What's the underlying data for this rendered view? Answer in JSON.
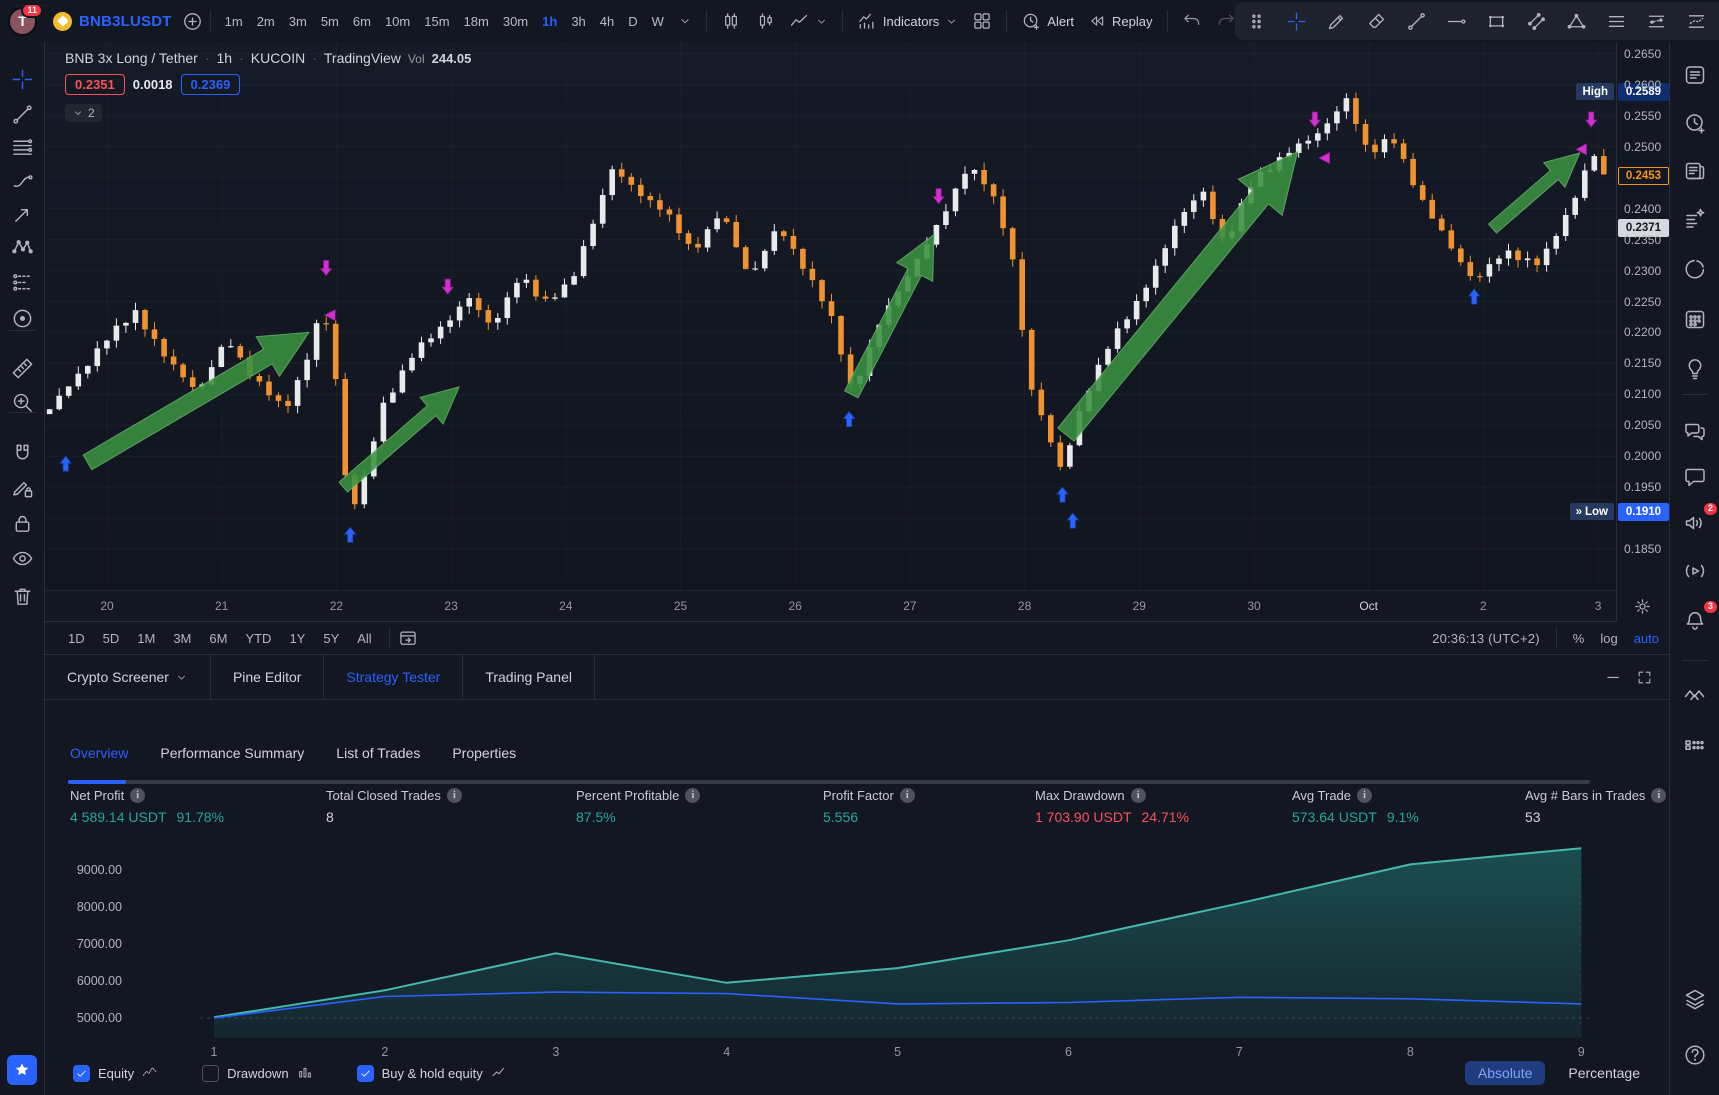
{
  "colors": {
    "accent": "#2962ff",
    "up": "#e9eaec",
    "down": "#f0922f",
    "positive": "#26a69a",
    "negative": "#f7525f",
    "arrow_green": "#3a9140",
    "sell_marker": "#cf30cf",
    "buy_marker": "#2962ff",
    "equity_line": "#45b8ac",
    "buy_hold_line": "#2962ff"
  },
  "topbar": {
    "avatar_initial": "T",
    "avatar_badge": "11",
    "symbol": "BNB3LUSDT",
    "timeframes": [
      "1m",
      "2m",
      "3m",
      "5m",
      "6m",
      "10m",
      "15m",
      "18m",
      "30m",
      "1h",
      "3h",
      "4h",
      "D",
      "W"
    ],
    "active_timeframe": "1h",
    "indicators_label": "Indicators",
    "alert_label": "Alert",
    "replay_label": "Replay",
    "drawing_palette": [
      "drag-handle",
      "crosshair",
      "pen",
      "eraser",
      "trend-line",
      "horizontal-line",
      "rectangle-tool",
      "parallel-channel",
      "triangle-pattern",
      "price-lines-a",
      "price-lines-b",
      "price-lines-c"
    ]
  },
  "left_toolbar": {
    "groups": [
      [
        "crosshair",
        "trend-line",
        "fib-retracement",
        "brush",
        "arrow-marker",
        "xabcd-pattern",
        "forecast",
        "circle-shape"
      ],
      [
        "ruler",
        "zoom-in"
      ],
      [
        "magnet",
        "drawing-mode",
        "lock",
        "eye"
      ],
      [
        "trash"
      ]
    ],
    "active_tool": "crosshair"
  },
  "right_sidebar": {
    "items": [
      {
        "name": "watchlist"
      },
      {
        "name": "alarm-clock"
      },
      {
        "name": "news"
      },
      {
        "name": "data-window"
      },
      {
        "name": "pie-chart"
      },
      {
        "name": "calendar"
      },
      {
        "name": "lightbulb"
      },
      {
        "name": "chat-double"
      },
      {
        "name": "chat-single"
      },
      {
        "name": "minds",
        "badge": "2"
      },
      {
        "name": "streams"
      },
      {
        "name": "bell",
        "badge": "3"
      },
      {
        "name": "object-tree"
      },
      {
        "name": "grid-boxes"
      }
    ],
    "bottom_items": [
      {
        "name": "layers"
      },
      {
        "name": "help"
      }
    ]
  },
  "chart": {
    "legend": {
      "title": "BNB 3x Long / Tether",
      "interval": "1h",
      "exchange": "KUCOIN",
      "provider": "TradingView",
      "vol_label": "Vol",
      "vol_value": "244.05",
      "bid": "0.2351",
      "change": "0.0018",
      "ask": "0.2369",
      "collapsed_count": "2"
    },
    "price_axis": {
      "ticks": [
        "0.2650",
        "0.2600",
        "0.2550",
        "0.2500",
        "0.2400",
        "0.2350",
        "0.2300",
        "0.2250",
        "0.2200",
        "0.2150",
        "0.2100",
        "0.2050",
        "0.2000",
        "0.1950",
        "0.1850"
      ],
      "high_label": "High",
      "high_value": "0.2589",
      "last_value": "0.2453",
      "countdown_value": "0.2371",
      "low_label": "Low",
      "low_value": "0.1910"
    },
    "time_axis": [
      "20",
      "21",
      "22",
      "23",
      "24",
      "25",
      "26",
      "27",
      "28",
      "29",
      "30",
      "Oct",
      "2",
      "3"
    ]
  },
  "range_bar": {
    "ranges": [
      "1D",
      "5D",
      "1M",
      "3M",
      "6M",
      "YTD",
      "1Y",
      "5Y",
      "All"
    ],
    "clock": "20:36:13 (UTC+2)",
    "percent_label": "%",
    "log_label": "log",
    "auto_label": "auto"
  },
  "panel": {
    "tabs": [
      {
        "label": "Crypto Screener",
        "chevron": true,
        "active": false
      },
      {
        "label": "Pine Editor",
        "active": false
      },
      {
        "label": "Strategy Tester",
        "active": true
      },
      {
        "label": "Trading Panel",
        "active": false
      }
    ],
    "subtabs": [
      {
        "label": "Overview",
        "active": true
      },
      {
        "label": "Performance Summary",
        "active": false
      },
      {
        "label": "List of Trades",
        "active": false
      },
      {
        "label": "Properties",
        "active": false
      }
    ],
    "stats": [
      {
        "label": "Net Profit",
        "value": "4 589.14 USDT",
        "pct": "91.78%",
        "tone": "positive"
      },
      {
        "label": "Total Closed Trades",
        "value": "8",
        "pct": "",
        "tone": "neutral"
      },
      {
        "label": "Percent Profitable",
        "value": "87.5%",
        "pct": "",
        "tone": "positive"
      },
      {
        "label": "Profit Factor",
        "value": "5.556",
        "pct": "",
        "tone": "positive"
      },
      {
        "label": "Max Drawdown",
        "value": "1 703.90 USDT",
        "pct": "24.71%",
        "tone": "negative"
      },
      {
        "label": "Avg Trade",
        "value": "573.64 USDT",
        "pct": "9.1%",
        "tone": "positive"
      },
      {
        "label": "Avg # Bars in Trades",
        "value": "53",
        "pct": "",
        "tone": "neutral"
      }
    ],
    "controls": {
      "checkboxes": [
        {
          "label": "Equity",
          "checked": true,
          "icon": "equity-mini"
        },
        {
          "label": "Drawdown",
          "checked": false,
          "icon": "columns-mini"
        },
        {
          "label": "Buy & hold equity",
          "checked": true,
          "icon": "line-mini"
        }
      ],
      "mode_buttons": [
        {
          "label": "Absolute",
          "active": true
        },
        {
          "label": "Percentage",
          "active": false
        }
      ]
    }
  },
  "chart_data": [
    {
      "type": "candlestick",
      "title": "BNB 3x Long / Tether 1h KUCOIN",
      "x_labels": [
        "20",
        "21",
        "22",
        "23",
        "24",
        "25",
        "26",
        "27",
        "28",
        "29",
        "30",
        "Oct",
        "2",
        "3"
      ],
      "price_ticks": [
        0.265,
        0.26,
        0.255,
        0.25,
        0.245,
        0.24,
        0.235,
        0.23,
        0.225,
        0.22,
        0.215,
        0.21,
        0.205,
        0.2,
        0.195,
        0.19,
        0.185
      ],
      "ylim": [
        0.185,
        0.267
      ],
      "high": 0.2589,
      "low": 0.191,
      "last": 0.2453,
      "num_candles": 164,
      "d_start": -0.5,
      "d_end": 13.05,
      "close_keypoints": [
        [
          -0.55,
          0.2065
        ],
        [
          -0.3,
          0.212
        ],
        [
          -0.05,
          0.218
        ],
        [
          0.25,
          0.2235
        ],
        [
          0.5,
          0.216
        ],
        [
          0.8,
          0.2105
        ],
        [
          1.05,
          0.219
        ],
        [
          1.3,
          0.212
        ],
        [
          1.55,
          0.2075
        ],
        [
          1.75,
          0.216
        ],
        [
          1.88,
          0.2245
        ],
        [
          2.0,
          0.212
        ],
        [
          2.08,
          0.1965
        ],
        [
          2.18,
          0.1915
        ],
        [
          2.4,
          0.208
        ],
        [
          2.65,
          0.216
        ],
        [
          2.97,
          0.222
        ],
        [
          3.15,
          0.2255
        ],
        [
          3.35,
          0.221
        ],
        [
          3.6,
          0.229
        ],
        [
          3.8,
          0.225
        ],
        [
          4.05,
          0.228
        ],
        [
          4.4,
          0.2465
        ],
        [
          4.6,
          0.243
        ],
        [
          4.85,
          0.24
        ],
        [
          5.1,
          0.233
        ],
        [
          5.35,
          0.2395
        ],
        [
          5.6,
          0.229
        ],
        [
          5.85,
          0.237
        ],
        [
          6.1,
          0.23
        ],
        [
          6.3,
          0.223
        ],
        [
          6.5,
          0.2105
        ],
        [
          6.75,
          0.222
        ],
        [
          7.0,
          0.23
        ],
        [
          7.21,
          0.236
        ],
        [
          7.5,
          0.247
        ],
        [
          7.7,
          0.243
        ],
        [
          7.88,
          0.234
        ],
        [
          8.05,
          0.211
        ],
        [
          8.32,
          0.198
        ],
        [
          8.5,
          0.208
        ],
        [
          8.75,
          0.219
        ],
        [
          9.0,
          0.225
        ],
        [
          9.3,
          0.237
        ],
        [
          9.55,
          0.243
        ],
        [
          9.75,
          0.234
        ],
        [
          10.0,
          0.245
        ],
        [
          10.38,
          0.25
        ],
        [
          10.6,
          0.253
        ],
        [
          10.81,
          0.2575
        ],
        [
          11.0,
          0.249
        ],
        [
          11.2,
          0.2515
        ],
        [
          11.45,
          0.242
        ],
        [
          11.7,
          0.234
        ],
        [
          11.92,
          0.2285
        ],
        [
          12.2,
          0.233
        ],
        [
          12.5,
          0.231
        ],
        [
          12.75,
          0.24
        ],
        [
          12.95,
          0.249
        ],
        [
          13.05,
          0.2453
        ]
      ],
      "trend_arrows": [
        {
          "from": [
            -0.17,
            0.199
          ],
          "to": [
            1.76,
            0.22
          ],
          "w": 17
        },
        {
          "from": [
            2.06,
            0.195
          ],
          "to": [
            3.07,
            0.2112
          ],
          "w": 13
        },
        {
          "from": [
            6.49,
            0.21
          ],
          "to": [
            7.21,
            0.2358
          ],
          "w": 15
        },
        {
          "from": [
            8.36,
            0.2035
          ],
          "to": [
            10.38,
            0.2492
          ],
          "w": 21
        },
        {
          "from": [
            12.08,
            0.2368
          ],
          "to": [
            12.84,
            0.249
          ],
          "w": 12
        }
      ],
      "markers": [
        {
          "d": 1.91,
          "p": 0.2292,
          "type": "sell"
        },
        {
          "d": 1.95,
          "p": 0.2228,
          "type": "sell_left"
        },
        {
          "d": 2.97,
          "p": 0.2262,
          "type": "sell"
        },
        {
          "d": 7.25,
          "p": 0.2408,
          "type": "sell"
        },
        {
          "d": 10.53,
          "p": 0.2532,
          "type": "sell"
        },
        {
          "d": 10.62,
          "p": 0.2482,
          "type": "sell_left"
        },
        {
          "d": 12.94,
          "p": 0.2532,
          "type": "sell"
        },
        {
          "d": 12.86,
          "p": 0.2496,
          "type": "sell_left"
        },
        {
          "d": -0.36,
          "p": 0.2,
          "type": "buy"
        },
        {
          "d": 2.12,
          "p": 0.1885,
          "type": "buy"
        },
        {
          "d": 6.47,
          "p": 0.2072,
          "type": "buy"
        },
        {
          "d": 8.33,
          "p": 0.195,
          "type": "buy"
        },
        {
          "d": 8.42,
          "p": 0.1908,
          "type": "buy"
        },
        {
          "d": 11.92,
          "p": 0.227,
          "type": "buy"
        }
      ]
    },
    {
      "type": "area",
      "title": "Strategy Tester equity curve",
      "x": [
        1,
        2,
        3,
        4,
        5,
        6,
        7,
        8,
        9
      ],
      "series": [
        {
          "name": "Equity",
          "values": [
            5020,
            5750,
            6750,
            5950,
            6350,
            7100,
            8100,
            9150,
            9590
          ]
        },
        {
          "name": "Buy & hold equity",
          "values": [
            5000,
            5580,
            5700,
            5660,
            5380,
            5420,
            5560,
            5520,
            5380
          ]
        }
      ],
      "y_tick_labels": [
        "9000.00",
        "8000.00",
        "7000.00",
        "6000.00",
        "5000.00"
      ],
      "y_ticks": [
        9000,
        8000,
        7000,
        6000,
        5000
      ],
      "ylim": [
        4700,
        9900
      ],
      "baseline": 5000,
      "legend_position": "bottom-left",
      "grid": "baseline-dashed-only"
    }
  ]
}
